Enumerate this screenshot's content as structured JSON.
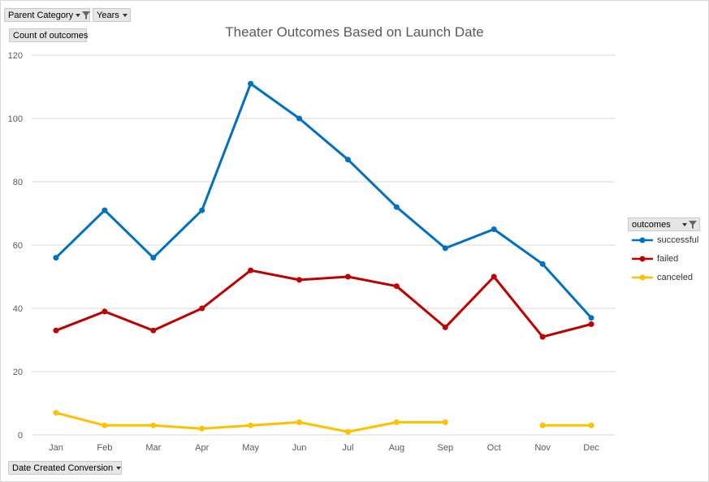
{
  "pivot": {
    "filter_parent_category": "Parent Category",
    "filter_years": "Years",
    "value_field": "Count of outcomes",
    "axis_field": "Date Created Conversion",
    "legend_field": "outcomes"
  },
  "colors": {
    "successful": "#0070c0",
    "failed": "#c00000",
    "canceled": "#ffc000",
    "gridline": "#d9d9d9",
    "axis_text": "#595959"
  },
  "icons": [
    "dropdown-arrow-icon",
    "filter-icon"
  ],
  "chart_data": {
    "type": "line",
    "title": "Theater Outcomes Based on Launch Date",
    "xlabel": "",
    "ylabel": "",
    "categories": [
      "Jan",
      "Feb",
      "Mar",
      "Apr",
      "May",
      "Jun",
      "Jul",
      "Aug",
      "Sep",
      "Oct",
      "Nov",
      "Dec"
    ],
    "ylim": [
      0,
      120
    ],
    "yticks": [
      0,
      20,
      40,
      60,
      80,
      100,
      120
    ],
    "grid": true,
    "legend_position": "right",
    "series": [
      {
        "name": "successful",
        "color": "#0070c0",
        "values": [
          56,
          71,
          56,
          71,
          111,
          100,
          87,
          72,
          59,
          65,
          54,
          37
        ]
      },
      {
        "name": "failed",
        "color": "#c00000",
        "values": [
          33,
          39,
          33,
          40,
          52,
          49,
          50,
          47,
          34,
          50,
          31,
          35
        ]
      },
      {
        "name": "canceled",
        "color": "#ffc000",
        "values": [
          7,
          3,
          3,
          2,
          3,
          4,
          1,
          4,
          4,
          null,
          3,
          3
        ]
      }
    ]
  }
}
